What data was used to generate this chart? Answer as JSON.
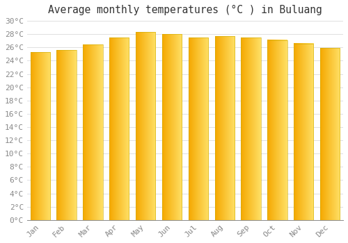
{
  "title": "Average monthly temperatures (°C ) in Buluang",
  "months": [
    "Jan",
    "Feb",
    "Mar",
    "Apr",
    "May",
    "Jun",
    "Jul",
    "Aug",
    "Sep",
    "Oct",
    "Nov",
    "Dec"
  ],
  "values": [
    25.3,
    25.6,
    26.4,
    27.5,
    28.3,
    28.0,
    27.5,
    27.7,
    27.5,
    27.1,
    26.6,
    25.9
  ],
  "bar_color_left": "#F5A800",
  "bar_color_right": "#FFD966",
  "ylim": [
    0,
    30
  ],
  "ytick_step": 2,
  "background_color": "#ffffff",
  "plot_background": "#ffffff",
  "grid_color": "#e0e0e0",
  "title_fontsize": 10.5,
  "tick_fontsize": 8,
  "font_family": "monospace"
}
